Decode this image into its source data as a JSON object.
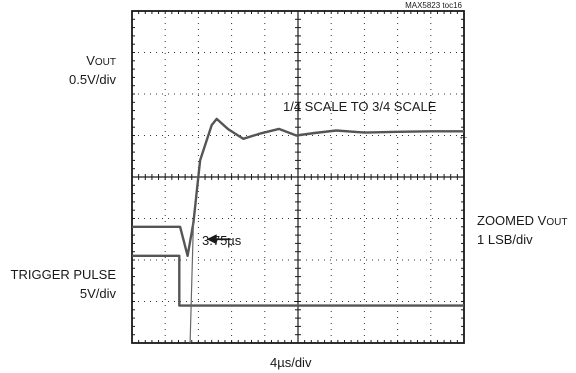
{
  "figure_id": "MAX5823 toc16",
  "labels": {
    "vout_prefix": "V",
    "vout_sub": "OUT",
    "vout_scale": "0.5V/div",
    "scale_note": "1/4 SCALE TO 3/4 SCALE",
    "zoomed_prefix": "ZOOMED V",
    "zoomed_sub": "OUT",
    "zoomed_scale": "1 LSB/div",
    "trigger_name": "TRIGGER PULSE",
    "trigger_scale": "5V/div",
    "annotation": "3.75µs",
    "time_scale": "4µs/div"
  },
  "chart_data": {
    "type": "line",
    "x_unit": "µs",
    "x_divisions": 10,
    "y_divisions": 8,
    "x_range_us": [
      0,
      40
    ],
    "series": [
      {
        "name": "VOUT",
        "x": [
          0,
          5.6,
          7.6,
          8.3,
          9.6,
          40
        ],
        "y_div": [
          5.05,
          5.05,
          7.9,
          8.0,
          8.05,
          8.05
        ]
      },
      {
        "name": "ZOOMED VOUT",
        "x": [
          0,
          5.8,
          6.7,
          7.4,
          8.2,
          9.6,
          10.2,
          11.6,
          13.4,
          15.5,
          17.7,
          19.8,
          22.0,
          24.6,
          28.0,
          32.0,
          36.0,
          40.0
        ],
        "y_div": [
          -1.2,
          -1.2,
          -1.9,
          -1.1,
          0.4,
          1.25,
          1.4,
          1.15,
          0.92,
          1.05,
          1.16,
          1.0,
          1.06,
          1.12,
          1.07,
          1.09,
          1.1,
          1.1
        ]
      },
      {
        "name": "TRIGGER PULSE",
        "x": [
          0,
          5.7,
          5.7,
          40
        ],
        "y_div": [
          -1.9,
          -1.9,
          -3.1,
          -3.1
        ]
      }
    ],
    "annotations": [
      {
        "text": "3.75µs",
        "x_us": 9.0,
        "y_div": -1.5
      }
    ]
  }
}
